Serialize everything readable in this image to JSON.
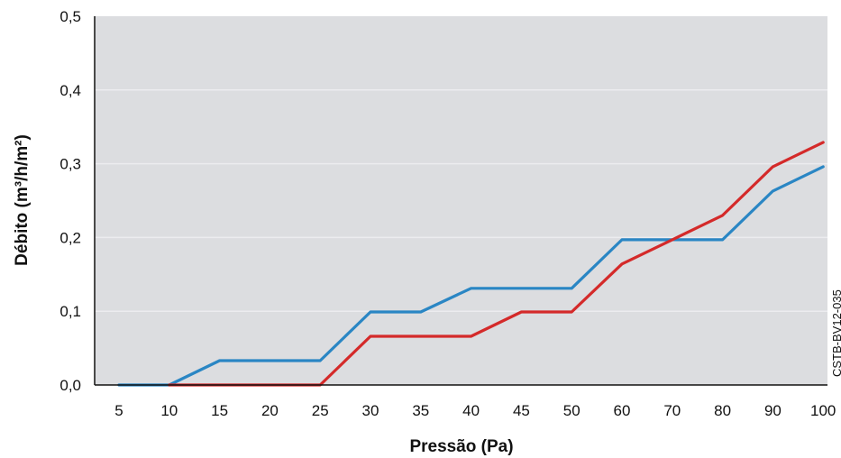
{
  "chart_data": {
    "type": "line",
    "title": "",
    "xlabel": "Pressão (Pa)",
    "ylabel": "Débito (m³/h/m²)",
    "categories": [
      "5",
      "10",
      "15",
      "20",
      "25",
      "30",
      "35",
      "40",
      "45",
      "50",
      "60",
      "70",
      "80",
      "90",
      "100"
    ],
    "y_tick_labels": [
      "0,0",
      "0,1",
      "0,2",
      "0,3",
      "0,4",
      "0,5"
    ],
    "ylim": [
      0,
      0.5
    ],
    "grid": true,
    "colors": {
      "plot_background": "#dcdde0",
      "grid": "#ececef",
      "blue_series": "#2a86c4",
      "red_series": "#d42a2a"
    },
    "series": [
      {
        "color": "#2a86c4",
        "values": [
          0.0,
          0.0,
          0.033,
          0.033,
          0.033,
          0.099,
          0.099,
          0.131,
          0.131,
          0.131,
          0.197,
          0.197,
          0.197,
          0.263,
          0.296
        ]
      },
      {
        "color": "#d42a2a",
        "values": [
          null,
          0.0,
          0.0,
          0.0,
          0.0,
          0.066,
          0.066,
          0.066,
          0.099,
          0.099,
          0.164,
          0.197,
          0.23,
          0.296,
          0.329
        ]
      }
    ],
    "annotation": "CSTB-BV12-035"
  }
}
